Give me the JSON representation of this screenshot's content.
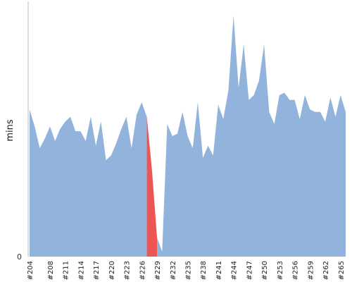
{
  "chart_data": {
    "type": "area",
    "title": "",
    "xlabel": "",
    "ylabel": "mins",
    "y_tick_labels": [
      "0"
    ],
    "ylim": [
      0,
      100
    ],
    "grid": false,
    "colors": {
      "area": "#92b4dc",
      "failure": "#ee5555",
      "axis": "#bbbbbb"
    },
    "x_tick_labels": [
      "#204",
      "#208",
      "#211",
      "#214",
      "#217",
      "#220",
      "#223",
      "#226",
      "#229",
      "#232",
      "#235",
      "#238",
      "#241",
      "#244",
      "#247",
      "#250",
      "#253",
      "#256",
      "#259",
      "#262",
      "#265"
    ],
    "builds": [
      204,
      205,
      206,
      207,
      208,
      209,
      210,
      211,
      212,
      213,
      214,
      215,
      216,
      217,
      218,
      219,
      220,
      221,
      222,
      223,
      224,
      225,
      226,
      227,
      228,
      229,
      230,
      231,
      232,
      233,
      234,
      235,
      236,
      237,
      238,
      239,
      240,
      241,
      242,
      243,
      244,
      245,
      246,
      247,
      248,
      249,
      250,
      251,
      252,
      253,
      254,
      255,
      256,
      257,
      258,
      259,
      260,
      261,
      262,
      263,
      264,
      265,
      266
    ],
    "series": [
      {
        "values": [
          61,
          54,
          45,
          49,
          54,
          48,
          53,
          56,
          58,
          52,
          52,
          48,
          58,
          46,
          56,
          40,
          42,
          47,
          53,
          58,
          45,
          59,
          64,
          58,
          36,
          8,
          2,
          55,
          50,
          51,
          60,
          50,
          45,
          64,
          41,
          46,
          42,
          63,
          57,
          69,
          100,
          70,
          88,
          65,
          67,
          73,
          88,
          60,
          55,
          67,
          68,
          65,
          65,
          57,
          67,
          61,
          60,
          60,
          56,
          66,
          58,
          67,
          60
        ],
        "status": [
          "ok",
          "ok",
          "ok",
          "ok",
          "ok",
          "ok",
          "ok",
          "ok",
          "ok",
          "ok",
          "ok",
          "ok",
          "ok",
          "ok",
          "ok",
          "ok",
          "ok",
          "ok",
          "ok",
          "ok",
          "ok",
          "ok",
          "ok",
          "ok",
          "fail",
          "fail",
          "ok",
          "ok",
          "ok",
          "ok",
          "ok",
          "ok",
          "ok",
          "ok",
          "ok",
          "ok",
          "ok",
          "ok",
          "ok",
          "ok",
          "ok",
          "ok",
          "ok",
          "ok",
          "ok",
          "ok",
          "ok",
          "ok",
          "ok",
          "ok",
          "ok",
          "ok",
          "ok",
          "ok",
          "ok",
          "ok",
          "ok",
          "ok",
          "ok",
          "ok",
          "ok",
          "ok",
          "ok"
        ]
      }
    ]
  }
}
